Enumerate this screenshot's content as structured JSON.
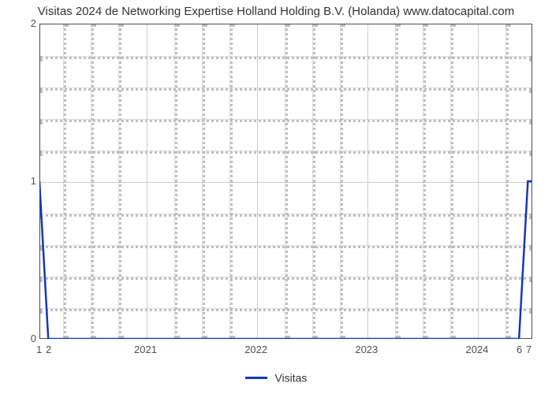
{
  "chart": {
    "type": "line",
    "title": "Visitas 2024 de Networking Expertise Holland Holding B.V. (Holanda) www.datocapital.com",
    "title_fontsize": 15,
    "title_color": "#333333",
    "background_color": "#ffffff",
    "plot_border_color": "#4d4d4d",
    "grid_color": "#cccccc",
    "minor_grid_color": "#bfbfbf",
    "line_color": "#1338be",
    "line_width": 2.5,
    "y": {
      "min": 0,
      "max": 2,
      "major_ticks": [
        0,
        1,
        2
      ],
      "minor_ticks": [
        0.2,
        0.4,
        0.6,
        0.8,
        1.2,
        1.4,
        1.6,
        1.8
      ]
    },
    "x": {
      "domain_min": 2020.04,
      "domain_max": 2024.5,
      "major_ticks": [
        2021,
        2022,
        2023,
        2024
      ],
      "minor_ticks": [
        2020.25,
        2020.5,
        2020.75,
        2021.25,
        2021.5,
        2021.75,
        2022.25,
        2022.5,
        2022.75,
        2023.25,
        2023.5,
        2023.75,
        2024.25
      ],
      "left_corner_labels": [
        "1",
        "2"
      ],
      "right_corner_labels": [
        "6",
        "7"
      ]
    },
    "series": [
      {
        "name": "Visitas",
        "points": [
          {
            "x": 2020.04,
            "y": 1
          },
          {
            "x": 2020.12,
            "y": 0
          },
          {
            "x": 2024.38,
            "y": 0
          },
          {
            "x": 2024.46,
            "y": 1
          },
          {
            "x": 2024.5,
            "y": 1
          }
        ]
      }
    ],
    "legend": {
      "label": "Visitas"
    }
  }
}
